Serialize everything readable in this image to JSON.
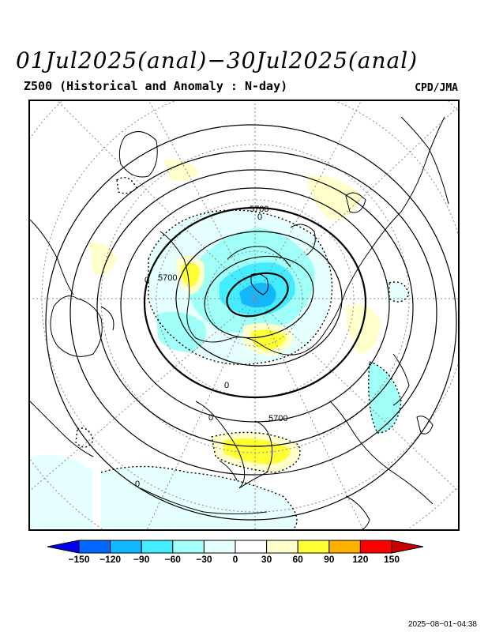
{
  "header": {
    "title": "01Jul2025(anal)−30Jul2025(anal)",
    "subtitle": "Z500 (Historical and Anomaly : N-day)",
    "source": "CPD/JMA"
  },
  "map": {
    "projection": "north-polar-stereographic",
    "contour_labels": [
      "5700",
      "5700",
      "5700",
      "0",
      "0",
      "0",
      "0",
      "0"
    ],
    "anomaly_units": "m",
    "features": [
      "coastlines",
      "lat-lon-grid-dotted",
      "height-contours-solid",
      "anomaly-zero-dotted"
    ]
  },
  "colorbar": {
    "ticks": [
      "−150",
      "−120",
      "−90",
      "−60",
      "−30",
      "0",
      "30",
      "60",
      "90",
      "120",
      "150"
    ],
    "colors": [
      "#0000ee",
      "#0068ff",
      "#10b8ff",
      "#44ecff",
      "#a0fff6",
      "#e6ffff",
      "#ffffff",
      "#ffffcc",
      "#ffff36",
      "#ffb100",
      "#ff0000",
      "#c80000"
    ]
  },
  "footer": {
    "timestamp": "2025−08−01−04:38"
  }
}
